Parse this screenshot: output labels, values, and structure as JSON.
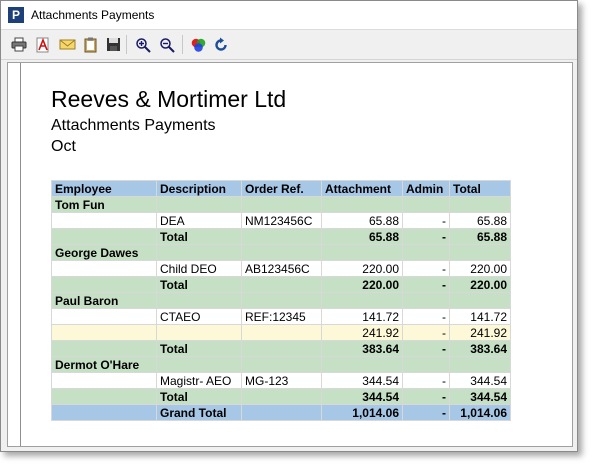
{
  "window": {
    "title": "Attachments Payments",
    "app_icon_letter": "P"
  },
  "toolbar": {
    "buttons": [
      {
        "name": "print-icon"
      },
      {
        "name": "pdf-icon"
      },
      {
        "name": "email-icon"
      },
      {
        "name": "clipboard-icon"
      },
      {
        "name": "save-icon"
      },
      {
        "name": "zoom-in-icon"
      },
      {
        "name": "zoom-out-icon"
      },
      {
        "name": "color-icon"
      },
      {
        "name": "refresh-icon"
      }
    ]
  },
  "report": {
    "company": "Reeves & Mortimer Ltd",
    "subtitle": "Attachments Payments",
    "period": "Oct",
    "headers": [
      "Employee",
      "Description",
      "Order Ref.",
      "Attachment",
      "Admin",
      "Total"
    ],
    "rows": [
      {
        "type": "group",
        "cells": [
          "Tom Fun",
          "",
          "",
          "",
          "",
          ""
        ]
      },
      {
        "type": "detail",
        "cells": [
          "",
          "DEA",
          "NM123456C",
          "65.88",
          "-",
          "65.88"
        ]
      },
      {
        "type": "total",
        "cells": [
          "",
          "Total",
          "",
          "65.88",
          "-",
          "65.88"
        ]
      },
      {
        "type": "group",
        "cells": [
          "George Dawes",
          "",
          "",
          "",
          "",
          ""
        ]
      },
      {
        "type": "detail",
        "cells": [
          "",
          "Child DEO",
          "AB123456C",
          "220.00",
          "-",
          "220.00"
        ]
      },
      {
        "type": "total",
        "cells": [
          "",
          "Total",
          "",
          "220.00",
          "-",
          "220.00"
        ]
      },
      {
        "type": "group",
        "cells": [
          "Paul Baron",
          "",
          "",
          "",
          "",
          ""
        ]
      },
      {
        "type": "detail",
        "cells": [
          "",
          "CTAEO",
          "REF:12345",
          "141.72",
          "-",
          "141.72"
        ]
      },
      {
        "type": "sub",
        "cells": [
          "",
          "",
          "",
          "241.92",
          "-",
          "241.92"
        ]
      },
      {
        "type": "total",
        "cells": [
          "",
          "Total",
          "",
          "383.64",
          "-",
          "383.64"
        ]
      },
      {
        "type": "group",
        "cells": [
          "Dermot O'Hare",
          "",
          "",
          "",
          "",
          ""
        ]
      },
      {
        "type": "detail",
        "cells": [
          "",
          "Magistr- AEO",
          "MG-123",
          "344.54",
          "-",
          "344.54"
        ]
      },
      {
        "type": "total",
        "cells": [
          "",
          "Total",
          "",
          "344.54",
          "-",
          "344.54"
        ]
      },
      {
        "type": "grand",
        "cells": [
          "",
          "Grand Total",
          "",
          "1,014.06",
          "-",
          "1,014.06"
        ]
      }
    ]
  }
}
